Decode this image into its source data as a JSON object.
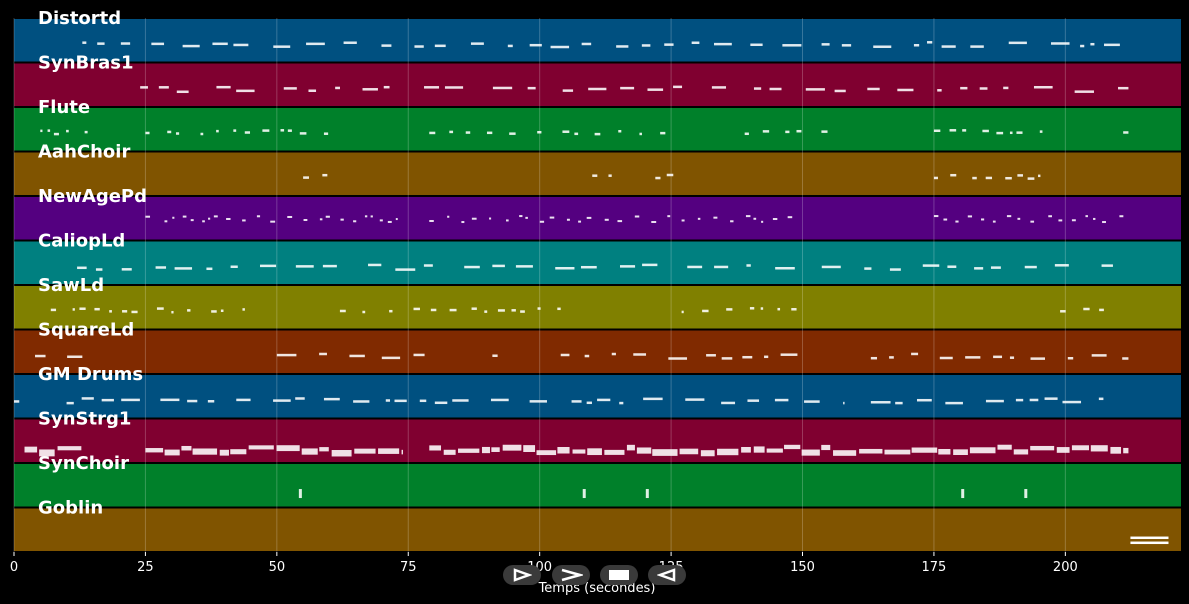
{
  "chart_data": {
    "type": "piano-roll",
    "xlabel": "Temps (secondes)",
    "xlim": [
      0,
      222
    ],
    "xticks": [
      0,
      25,
      50,
      75,
      100,
      125,
      150,
      175,
      200
    ],
    "tracks": [
      {
        "name": "Distortd",
        "color": "#005080",
        "segments": [
          [
            13,
            212
          ]
        ],
        "density": 0.45,
        "style": "dash"
      },
      {
        "name": "SynBras1",
        "color": "#800030",
        "segments": [
          [
            24,
            73
          ],
          [
            78,
            212
          ]
        ],
        "density": 0.4,
        "style": "dash"
      },
      {
        "name": "Flute",
        "color": "#00802a",
        "segments": [
          [
            5,
            14
          ],
          [
            25,
            60
          ],
          [
            79,
            125
          ],
          [
            139,
            155
          ],
          [
            175,
            198
          ],
          [
            211,
            212
          ]
        ],
        "density": 0.55,
        "style": "dot"
      },
      {
        "name": "AahChoir",
        "color": "#805400",
        "segments": [
          [
            55,
            60
          ],
          [
            110,
            114
          ],
          [
            122,
            127
          ],
          [
            175,
            198
          ]
        ],
        "density": 0.7,
        "style": "dot"
      },
      {
        "name": "NewAgePd",
        "color": "#540080",
        "segments": [
          [
            25,
            73
          ],
          [
            79,
            150
          ],
          [
            175,
            212
          ]
        ],
        "density": 0.8,
        "style": "wave"
      },
      {
        "name": "CaliopLd",
        "color": "#008080",
        "segments": [
          [
            12,
            212
          ]
        ],
        "density": 0.35,
        "style": "dash"
      },
      {
        "name": "SawLd",
        "color": "#808000",
        "segments": [
          [
            7,
            46
          ],
          [
            62,
            72
          ],
          [
            76,
            104
          ],
          [
            127,
            150
          ],
          [
            199,
            210
          ]
        ],
        "density": 0.5,
        "style": "dot"
      },
      {
        "name": "SquareLd",
        "color": "#802a00",
        "segments": [
          [
            4,
            13
          ],
          [
            50,
            74
          ],
          [
            76,
            80
          ],
          [
            91,
            92
          ],
          [
            104,
            150
          ],
          [
            163,
            212
          ]
        ],
        "density": 0.5,
        "style": "dash"
      },
      {
        "name": "GM Drums",
        "color": "#005080",
        "segments": [
          [
            0,
            1
          ],
          [
            10,
            158
          ],
          [
            163,
            210
          ]
        ],
        "density": 0.45,
        "style": "dash"
      },
      {
        "name": "SynStrg1",
        "color": "#800030",
        "segments": [
          [
            2,
            13
          ],
          [
            25,
            74
          ],
          [
            79,
            212
          ]
        ],
        "density": 0.95,
        "style": "block"
      },
      {
        "name": "SynChoir",
        "color": "#00802a",
        "segments": [
          [
            54,
            55
          ],
          [
            108,
            109
          ],
          [
            120,
            121
          ],
          [
            180,
            181
          ],
          [
            192,
            193
          ]
        ],
        "density": 1.0,
        "style": "tick"
      },
      {
        "name": "Goblin",
        "color": "#805400",
        "segments": [
          [
            212,
            220
          ]
        ],
        "density": 1.0,
        "style": "end"
      }
    ]
  },
  "controls": {
    "play_icon": "play-icon",
    "forward_icon": "forward-icon",
    "stop_icon": "stop-icon",
    "rewind_icon": "rewind-icon"
  }
}
